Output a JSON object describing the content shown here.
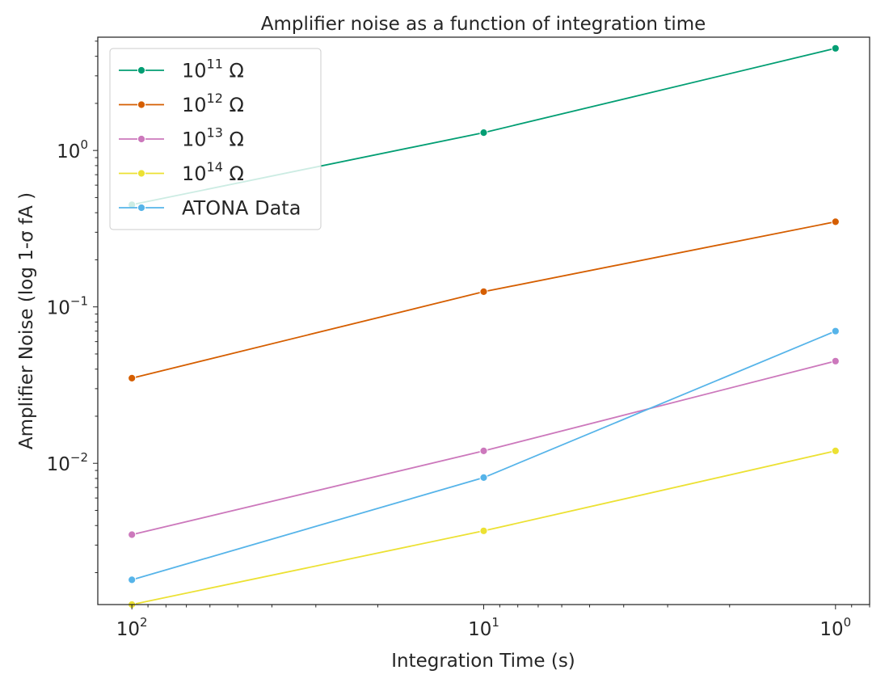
{
  "chart_data": {
    "type": "line",
    "title": "Amplifier noise as a function of integration time",
    "xlabel": "Integration Time (s)",
    "ylabel": "Amplifier Noise (log 1-σ fA )",
    "x_scale": "log",
    "y_scale": "log",
    "x_direction": "reversed",
    "x": [
      100,
      10,
      1
    ],
    "xlim": [
      125,
      0.8
    ],
    "ylim": [
      0.00125,
      5.3
    ],
    "x_ticks": [
      {
        "base": "10",
        "exp": "2",
        "value": 100
      },
      {
        "base": "10",
        "exp": "1",
        "value": 10
      },
      {
        "base": "10",
        "exp": "0",
        "value": 1
      }
    ],
    "y_ticks": [
      {
        "base": "10",
        "exp": "0",
        "value": 1
      },
      {
        "base": "10",
        "exp": "−1",
        "value": 0.1
      },
      {
        "base": "10",
        "exp": "−2",
        "value": 0.01
      }
    ],
    "grid": false,
    "legend_position": "top-left",
    "marker": "circle",
    "series": [
      {
        "name_base": "10",
        "name_exp": "11",
        "name_unit": " Ω",
        "color": "#029e73",
        "values": [
          0.45,
          1.3,
          4.5
        ]
      },
      {
        "name_base": "10",
        "name_exp": "12",
        "name_unit": " Ω",
        "color": "#d55e00",
        "values": [
          0.035,
          0.125,
          0.35
        ]
      },
      {
        "name_base": "10",
        "name_exp": "13",
        "name_unit": " Ω",
        "color": "#cc78bc",
        "values": [
          0.0035,
          0.012,
          0.045
        ]
      },
      {
        "name_base": "10",
        "name_exp": "14",
        "name_unit": " Ω",
        "color": "#ece133",
        "values": [
          0.00125,
          0.0037,
          0.012
        ]
      },
      {
        "name": "ATONA Data",
        "color": "#56b4e9",
        "values": [
          0.0018,
          0.0081,
          0.07
        ]
      }
    ]
  }
}
